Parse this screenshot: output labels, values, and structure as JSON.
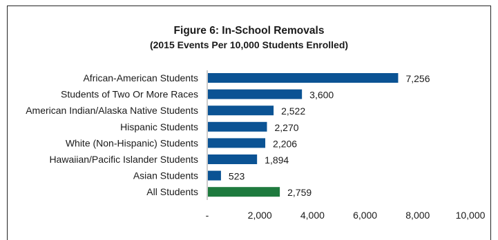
{
  "chart_data": {
    "type": "bar",
    "orientation": "horizontal",
    "title": "Figure 6:  In-School Removals",
    "subtitle": "(2015 Events Per 10,000 Students Enrolled)",
    "categories": [
      "African-American Students",
      "Students of Two Or More Races",
      "American Indian/Alaska Native Students",
      "Hispanic Students",
      "White (Non-Hispanic) Students",
      "Hawaiian/Pacific Islander Students",
      "Asian Students",
      "All Students"
    ],
    "values": [
      7256,
      3600,
      2522,
      2270,
      2206,
      1894,
      523,
      2759
    ],
    "value_labels": [
      "7,256",
      "3,600",
      "2,522",
      "2,270",
      "2,206",
      "1,894",
      "523",
      "2,759"
    ],
    "xlim": [
      0,
      10000
    ],
    "x_ticks": [
      0,
      2000,
      4000,
      6000,
      8000,
      10000
    ],
    "x_tick_labels": [
      "-",
      "2,000",
      "4,000",
      "6,000",
      "8,000",
      "10,000"
    ],
    "grid": false,
    "colors": {
      "bar": "#0b5394",
      "highlight": "#1e7a3e",
      "axis": "#999999"
    },
    "highlight_category": "All Students"
  }
}
